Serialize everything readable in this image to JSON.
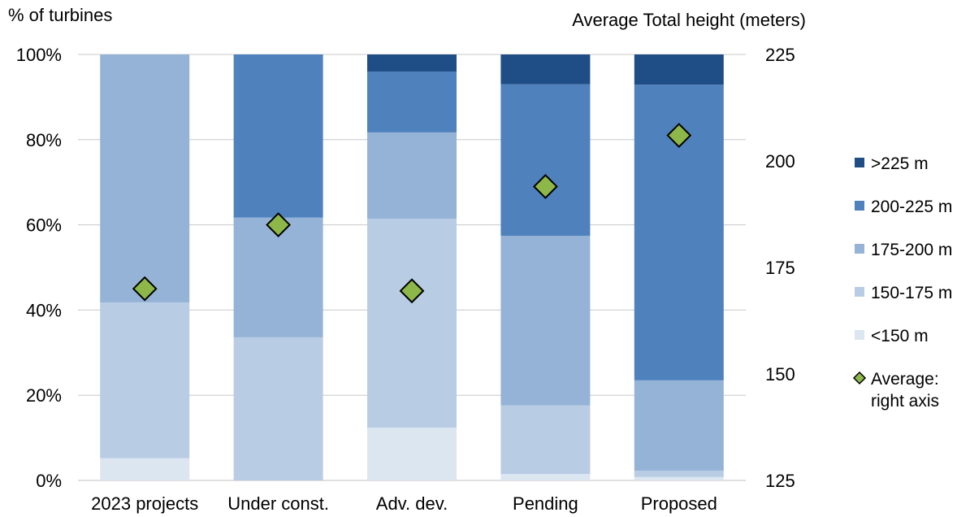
{
  "chart_data": {
    "type": "bar",
    "stacked": true,
    "percent": true,
    "left_axis_label": "% of turbines",
    "right_axis_label": "Average Total height (meters)",
    "categories": [
      "2023 projects",
      "Under const.",
      "Adv. dev.",
      "Pending",
      "Proposed"
    ],
    "y_ticks": [
      "0%",
      "20%",
      "40%",
      "60%",
      "80%",
      "100%"
    ],
    "y_tick_values": [
      0,
      20,
      40,
      60,
      80,
      100
    ],
    "ylim": [
      0,
      100
    ],
    "y2_ticks": [
      "125",
      "150",
      "175",
      "200",
      "225"
    ],
    "y2_tick_values": [
      125,
      150,
      175,
      200,
      225
    ],
    "y2lim": [
      125,
      225
    ],
    "series": [
      {
        "name": "<150 m",
        "color": "#dce6f1",
        "values": [
          5.2,
          0,
          12.4,
          1.5,
          0.8
        ]
      },
      {
        "name": "150-175 m",
        "color": "#b8cce4",
        "values": [
          36.6,
          33.6,
          49.0,
          16.1,
          1.5
        ]
      },
      {
        "name": "175-200 m",
        "color": "#95b3d7",
        "values": [
          58.2,
          28.1,
          20.3,
          39.8,
          21.2
        ]
      },
      {
        "name": "200-225 m",
        "color": "#4f81bd",
        "values": [
          0,
          38.3,
          14.3,
          35.6,
          69.4
        ]
      },
      {
        "name": ">225 m",
        "color": "#1f4e86",
        "values": [
          0,
          0,
          4.0,
          7.0,
          7.1
        ]
      }
    ],
    "average_series": {
      "name": "Average: right axis",
      "axis": "right",
      "marker": "diamond",
      "color": "#8db748",
      "values": [
        170,
        185,
        169.5,
        194,
        206
      ]
    },
    "legend_position": "right",
    "grid": true
  }
}
